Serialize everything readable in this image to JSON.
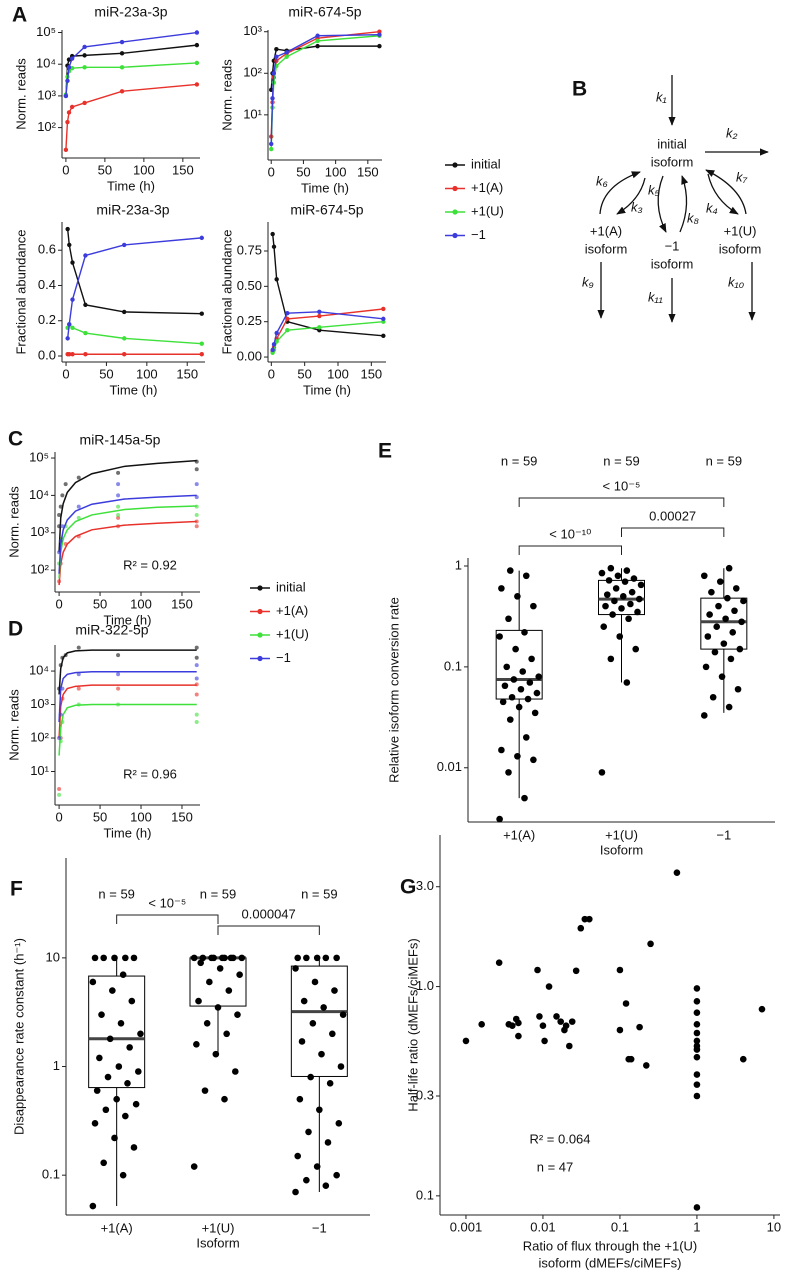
{
  "chart_data": [
    {
      "type": "line",
      "panel": "A",
      "title": "miR-23a-3p",
      "xlabel": "Time (h)",
      "ylabel": "Norm. reads",
      "log_y": true,
      "legend": true,
      "x": [
        0,
        2,
        4,
        8,
        24,
        72,
        168
      ],
      "xlim": [
        -5,
        172
      ],
      "xticks": [
        0,
        50,
        100,
        150
      ],
      "ylim": [
        11,
        120000
      ],
      "yticks": [
        {
          "value": 100,
          "label": "10²"
        },
        {
          "value": 1000,
          "label": "10³"
        },
        {
          "value": 10000,
          "label": "10⁴"
        },
        {
          "value": 100000,
          "label": "10⁵"
        }
      ],
      "series": [
        {
          "name": "initial",
          "color": "#111111",
          "values": [
            1000,
            9000,
            14000,
            18000,
            19000,
            22000,
            40000
          ]
        },
        {
          "name": "+1(A)",
          "color": "#e8312a",
          "values": [
            20,
            150,
            300,
            450,
            600,
            1400,
            2300
          ]
        },
        {
          "name": "+1(U)",
          "color": "#3ee03a",
          "values": [
            1100,
            4000,
            6000,
            7500,
            8000,
            8000,
            11000
          ]
        },
        {
          "name": "−1",
          "color": "#3c3cdc",
          "values": [
            1000,
            3000,
            8000,
            15000,
            35000,
            50000,
            100000
          ]
        }
      ]
    },
    {
      "type": "line",
      "title": "miR-674-5p",
      "xlabel": "Time (h)",
      "ylabel": "Norm. reads",
      "log_y": true,
      "x": [
        0,
        2,
        4,
        8,
        24,
        72,
        168
      ],
      "xlim": [
        -5,
        172
      ],
      "xticks": [
        0,
        50,
        100,
        150
      ],
      "ylim": [
        0.82,
        1100
      ],
      "yticks": [
        {
          "value": 10,
          "label": "10¹"
        },
        {
          "value": 100,
          "label": "10²"
        },
        {
          "value": 1000,
          "label": "10³"
        }
      ],
      "series": [
        {
          "name": "initial",
          "color": "#111111",
          "values": [
            40,
            100,
            200,
            380,
            350,
            450,
            450
          ]
        },
        {
          "name": "+1(A)",
          "color": "#e8312a",
          "values": [
            3,
            20,
            80,
            200,
            300,
            700,
            1000
          ]
        },
        {
          "name": "+1(U)",
          "color": "#3ee03a",
          "values": [
            1.5,
            15,
            60,
            150,
            250,
            600,
            800
          ]
        },
        {
          "name": "−1",
          "color": "#3c3cdc",
          "values": [
            2,
            25,
            100,
            250,
            320,
            800,
            850
          ]
        }
      ]
    },
    {
      "type": "line",
      "title": "miR-23a-3p",
      "xlabel": "Time (h)",
      "ylabel": "Fractional abundance",
      "x": [
        2,
        4,
        8,
        24,
        72,
        168
      ],
      "xlim": [
        -5,
        172
      ],
      "xticks": [
        0,
        50,
        100,
        150
      ],
      "ylim": [
        -0.034,
        0.76
      ],
      "yticks": [
        {
          "value": 0,
          "label": "0.0"
        },
        0.2,
        0.4,
        0.6
      ],
      "series": [
        {
          "name": "initial",
          "color": "#111111",
          "values": [
            0.72,
            0.63,
            0.53,
            0.29,
            0.25,
            0.24
          ]
        },
        {
          "name": "+1(A)",
          "color": "#e8312a",
          "values": [
            0.01,
            0.01,
            0.01,
            0.01,
            0.01,
            0.01
          ]
        },
        {
          "name": "+1(U)",
          "color": "#3ee03a",
          "values": [
            0.16,
            0.18,
            0.16,
            0.13,
            0.1,
            0.07
          ]
        },
        {
          "name": "−1",
          "color": "#3c3cdc",
          "values": [
            0.1,
            0.18,
            0.32,
            0.57,
            0.63,
            0.67
          ]
        }
      ]
    },
    {
      "type": "line",
      "title": "miR-674-5p",
      "xlabel": "Time (h)",
      "ylabel": "Fractional abundance",
      "x": [
        2,
        4,
        8,
        24,
        72,
        168
      ],
      "xlim": [
        -5,
        172
      ],
      "xticks": [
        0,
        50,
        100,
        150
      ],
      "ylim": [
        -0.035,
        0.955
      ],
      "yticks": [
        {
          "value": 0,
          "label": "0.00"
        },
        0.25,
        {
          "value": 0.5,
          "label": "0.50"
        },
        0.75
      ],
      "series": [
        {
          "name": "initial",
          "color": "#111111",
          "values": [
            0.87,
            0.78,
            0.55,
            0.25,
            0.19,
            0.15
          ]
        },
        {
          "name": "+1(A)",
          "color": "#e8312a",
          "values": [
            0.04,
            0.07,
            0.13,
            0.27,
            0.29,
            0.34
          ]
        },
        {
          "name": "+1(U)",
          "color": "#3ee03a",
          "values": [
            0.03,
            0.05,
            0.11,
            0.19,
            0.21,
            0.25
          ]
        },
        {
          "name": "−1",
          "color": "#3c3cdc",
          "values": [
            0.05,
            0.09,
            0.17,
            0.31,
            0.32,
            0.27
          ]
        }
      ]
    },
    {
      "type": "scatter",
      "panel": "C",
      "title": "miR-145a-5p",
      "xlabel": "Time (h)",
      "ylabel": "Norm. reads",
      "log_y": true,
      "legend": true,
      "annotation": "R² = 0.92",
      "xlim": [
        -5,
        172
      ],
      "xticks": [
        0,
        50,
        100,
        150
      ],
      "ylim": [
        26,
        145000
      ],
      "yticks": [
        {
          "value": 100,
          "label": "10²"
        },
        {
          "value": 1000,
          "label": "10³"
        },
        {
          "value": 10000,
          "label": "10⁴"
        },
        {
          "value": 100000,
          "label": "10⁵"
        }
      ],
      "fit_x": [
        0,
        2,
        5,
        10,
        20,
        40,
        80,
        120,
        168
      ],
      "series": [
        {
          "name": "initial",
          "color": "#111111",
          "x": [
            0,
            0,
            2,
            4,
            8,
            24,
            72,
            168,
            168
          ],
          "values": [
            3000,
            1500,
            5000,
            10000,
            20000,
            30000,
            40000,
            80000,
            50000
          ],
          "fit": [
            300,
            2500,
            6000,
            12000,
            22000,
            38000,
            60000,
            72000,
            85000
          ]
        },
        {
          "name": "+1(A)",
          "color": "#e8312a",
          "x": [
            0,
            2,
            8,
            24,
            72,
            72,
            168,
            168
          ],
          "values": [
            50,
            150,
            500,
            800,
            2500,
            1500,
            1500,
            2000
          ],
          "fit": [
            40,
            150,
            300,
            500,
            800,
            1200,
            1600,
            1800,
            2000
          ]
        },
        {
          "name": "+1(U)",
          "color": "#3ee03a",
          "x": [
            0,
            4,
            8,
            24,
            72,
            72,
            168,
            168
          ],
          "values": [
            150,
            700,
            1500,
            2500,
            5000,
            3000,
            5000,
            3000
          ],
          "fit": [
            60,
            300,
            700,
            1200,
            2000,
            3000,
            4200,
            4800,
            5200
          ]
        },
        {
          "name": "−1",
          "color": "#3c3cdc",
          "x": [
            0,
            2,
            4,
            24,
            72,
            72,
            168,
            168
          ],
          "values": [
            300,
            600,
            1500,
            5000,
            20000,
            10000,
            20000,
            9000
          ],
          "fit": [
            80,
            500,
            1200,
            2200,
            3800,
            5800,
            8000,
            9000,
            10000
          ]
        }
      ]
    },
    {
      "type": "scatter",
      "panel": "D",
      "title": "miR-322-5p",
      "xlabel": "Time (h)",
      "ylabel": "Norm. reads",
      "log_y": true,
      "annotation": "R² = 0.96",
      "xlim": [
        -5,
        172
      ],
      "xticks": [
        0,
        50,
        100,
        150
      ],
      "ylim": [
        1,
        60000
      ],
      "yticks": [
        {
          "value": 10,
          "label": "10¹"
        },
        {
          "value": 100,
          "label": "10²"
        },
        {
          "value": 1000,
          "label": "10³"
        },
        {
          "value": 10000,
          "label": "10⁴"
        }
      ],
      "fit_x": [
        0,
        2,
        5,
        10,
        20,
        40,
        80,
        120,
        168
      ],
      "series": [
        {
          "name": "initial",
          "color": "#111111",
          "x": [
            0,
            2,
            4,
            8,
            24,
            72,
            168,
            168
          ],
          "values": [
            3000,
            15000,
            25000,
            30000,
            50000,
            30000,
            50000,
            25000
          ],
          "fit": [
            2000,
            12000,
            25000,
            35000,
            40000,
            42000,
            42000,
            42000,
            42000
          ]
        },
        {
          "name": "+1(A)",
          "color": "#e8312a",
          "x": [
            0,
            2,
            4,
            24,
            72,
            168,
            168
          ],
          "values": [
            3,
            100,
            1500,
            3000,
            3000,
            4000,
            2000
          ],
          "fit": [
            100,
            900,
            2000,
            3000,
            3500,
            3800,
            3800,
            3800,
            3800
          ]
        },
        {
          "name": "+1(U)",
          "color": "#3ee03a",
          "x": [
            0,
            2,
            4,
            24,
            72,
            168,
            168
          ],
          "values": [
            2,
            80,
            300,
            1000,
            1000,
            500,
            300
          ],
          "fit": [
            30,
            200,
            500,
            800,
            950,
            1000,
            1000,
            1000,
            1000
          ]
        },
        {
          "name": "−1",
          "color": "#3c3cdc",
          "x": [
            0,
            2,
            4,
            24,
            72,
            168,
            168
          ],
          "values": [
            100,
            500,
            3000,
            8000,
            8000,
            15000,
            6000
          ],
          "fit": [
            300,
            3000,
            6000,
            8000,
            9000,
            9500,
            9500,
            9500,
            9500
          ]
        }
      ]
    },
    {
      "type": "box",
      "panel": "E",
      "xlabel": "Isoform",
      "ylabel": "Relative isoform conversion rate",
      "log_y": true,
      "color": "#000000",
      "categories": [
        "+1(A)",
        "+1(U)",
        "−1"
      ],
      "ylim": [
        0.0029,
        1.2
      ],
      "yticks": [
        0.01,
        0.1,
        1
      ],
      "boxes": [
        {
          "low": 0.005,
          "q1": 0.048,
          "median": 0.075,
          "q3": 0.23,
          "high": 0.9
        },
        {
          "low": 0.07,
          "q1": 0.33,
          "median": 0.47,
          "q3": 0.72,
          "high": 0.95
        },
        {
          "low": 0.035,
          "q1": 0.15,
          "median": 0.28,
          "q3": 0.48,
          "high": 0.95
        }
      ],
      "points": [
        [
          0.0031,
          0.005,
          0.009,
          0.012,
          0.013,
          0.015,
          0.02,
          0.03,
          0.035,
          0.04,
          0.045,
          0.048,
          0.05,
          0.055,
          0.06,
          0.065,
          0.07,
          0.075,
          0.08,
          0.09,
          0.1,
          0.12,
          0.15,
          0.2,
          0.22,
          0.3,
          0.4,
          0.5,
          0.6,
          0.8,
          0.9
        ],
        [
          0.009,
          0.07,
          0.12,
          0.15,
          0.2,
          0.25,
          0.3,
          0.33,
          0.35,
          0.38,
          0.4,
          0.42,
          0.45,
          0.47,
          0.5,
          0.52,
          0.55,
          0.6,
          0.65,
          0.7,
          0.72,
          0.75,
          0.8,
          0.85,
          0.9,
          0.95
        ],
        [
          0.033,
          0.04,
          0.05,
          0.06,
          0.08,
          0.1,
          0.12,
          0.14,
          0.15,
          0.17,
          0.2,
          0.22,
          0.25,
          0.28,
          0.3,
          0.33,
          0.36,
          0.4,
          0.45,
          0.48,
          0.55,
          0.6,
          0.7,
          0.8,
          0.95
        ]
      ],
      "n_labels": [
        "n = 59",
        "n = 59",
        "n = 59"
      ],
      "comparisons": [
        "< 10⁻⁵",
        "< 10⁻¹⁰",
        "0.00027"
      ]
    },
    {
      "type": "box",
      "panel": "F",
      "xlabel": "Isoform",
      "ylabel": "Disappearance rate constant (h⁻¹)",
      "log_y": true,
      "color": "#000000",
      "categories": [
        "+1(A)",
        "+1(U)",
        "−1"
      ],
      "ylim": [
        0.043,
        83
      ],
      "yticks": [
        0.1,
        1,
        10
      ],
      "boxes": [
        {
          "low": 0.052,
          "q1": 0.64,
          "median": 1.8,
          "q3": 6.8,
          "high": 10
        },
        {
          "low": 1.34,
          "q1": 3.6,
          "median": 10,
          "q3": 10,
          "high": 10
        },
        {
          "low": 0.07,
          "q1": 0.81,
          "median": 3.2,
          "q3": 8.4,
          "high": 10
        }
      ],
      "points": [
        [
          0.052,
          0.1,
          0.13,
          0.18,
          0.22,
          0.3,
          0.35,
          0.4,
          0.45,
          0.5,
          0.6,
          0.7,
          0.8,
          0.9,
          1,
          1.2,
          1.5,
          1.8,
          2,
          2.5,
          3,
          4,
          5,
          6,
          7,
          10,
          10,
          10,
          10,
          10
        ],
        [
          0.12,
          0.5,
          0.6,
          0.9,
          1.3,
          1.6,
          2,
          2.5,
          3,
          3.5,
          4,
          5,
          6,
          7,
          8,
          9,
          10,
          10,
          10,
          10,
          10,
          10,
          10,
          10,
          10
        ],
        [
          0.07,
          0.08,
          0.09,
          0.1,
          0.12,
          0.15,
          0.2,
          0.25,
          0.3,
          0.4,
          0.5,
          0.7,
          0.8,
          1,
          1.3,
          1.7,
          2,
          2.5,
          3,
          3.5,
          4,
          5,
          6,
          8,
          10,
          10,
          10,
          10,
          10
        ]
      ],
      "n_labels": [
        "n = 59",
        "n = 59",
        "n = 59"
      ],
      "comparisons": [
        "< 10⁻⁵",
        "0.000047"
      ]
    },
    {
      "type": "scatter",
      "panel": "G",
      "xlabel": [
        "Ratio of flux through the +1(U)",
        "isoform (dMEFs/ciMEFs)"
      ],
      "ylabel": "Half-life ratio (dMEFs/ciMEFs)",
      "log_x": true,
      "log_y": true,
      "color": "#000000",
      "annotations": [
        "R² = 0.064",
        "n = 47"
      ],
      "xlim": [
        0.00046,
        12
      ],
      "xticks": [
        0.001,
        0.01,
        0.1,
        1,
        10
      ],
      "ylim": [
        0.081,
        5.3
      ],
      "yticks": [
        0.1,
        0.3,
        {
          "value": 1,
          "label": "1.0"
        },
        {
          "value": 3,
          "label": "3.0"
        }
      ],
      "x": [
        0.001,
        0.0016,
        0.0027,
        0.0036,
        0.004,
        0.0048,
        0.0085,
        0.01,
        0.0105,
        0.012,
        0.017,
        0.02,
        0.022,
        0.027,
        0.031,
        0.035,
        0.04,
        0.25,
        0.55,
        0.1,
        0.12,
        0.13,
        0.18,
        0.22,
        0.1,
        1,
        1,
        1,
        1,
        1,
        1,
        1,
        1,
        1,
        1,
        1,
        1,
        4,
        7,
        0.0045,
        0.015,
        0.024,
        0.019,
        0.009,
        0.14,
        0.0048,
        1
      ],
      "values": [
        0.55,
        0.66,
        1.3,
        0.66,
        0.65,
        0.58,
        1.2,
        0.65,
        0.55,
        1.0,
        0.68,
        0.65,
        0.52,
        1.19,
        1.9,
        2.1,
        2.1,
        1.6,
        3.5,
        1.2,
        0.83,
        0.45,
        0.64,
        0.42,
        0.62,
        0.98,
        0.85,
        0.75,
        0.66,
        0.6,
        0.55,
        0.5,
        0.46,
        0.38,
        0.34,
        0.3,
        0.088,
        0.45,
        0.78,
        0.7,
        0.72,
        0.68,
        0.62,
        0.72,
        0.45,
        0.67,
        0.52
      ]
    }
  ],
  "diagram": {
    "panel": "B",
    "nodes": [
      [
        "initial",
        "isoform"
      ],
      [
        "+1(A)",
        "isoform"
      ],
      [
        "−1",
        "isoform"
      ],
      [
        "+1(U)",
        "isoform"
      ]
    ],
    "rates": [
      "k₁",
      "k₂",
      "k₃",
      "k₄",
      "k₅",
      "k₆",
      "k₇",
      "k₈",
      "k₉",
      "k₁₀",
      "k₁₁"
    ]
  }
}
